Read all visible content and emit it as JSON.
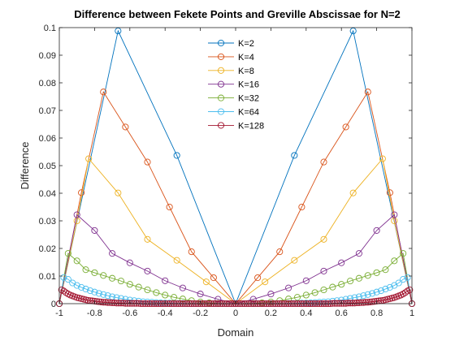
{
  "chart_data": {
    "type": "line",
    "title": "Difference between Fekete Points and Greville Abscissae for N=2",
    "xlabel": "Domain",
    "ylabel": "Difference",
    "xlim": [
      -1,
      1
    ],
    "ylim": [
      0,
      0.1
    ],
    "xticks": [
      -1,
      -0.8,
      -0.6,
      -0.4,
      -0.2,
      0,
      0.2,
      0.4,
      0.6,
      0.8,
      1
    ],
    "xtick_labels": [
      "-1",
      "-0.8",
      "-0.6",
      "-0.4",
      "-0.2",
      "0",
      "0.2",
      "0.4",
      "0.6",
      "0.8",
      "1"
    ],
    "yticks": [
      0,
      0.01,
      0.02,
      0.03,
      0.04,
      0.05,
      0.06,
      0.07,
      0.08,
      0.09,
      0.1
    ],
    "ytick_labels": [
      "0",
      "0.01",
      "0.02",
      "0.03",
      "0.04",
      "0.05",
      "0.06",
      "0.07",
      "0.08",
      "0.09",
      "0.1"
    ],
    "grid": false,
    "legend_position": "top-center",
    "series": [
      {
        "name": "K=2",
        "color": "#0072BD",
        "x": [
          -1,
          -0.6667,
          -0.3333,
          0,
          0.3333,
          0.6667,
          1
        ],
        "y": [
          0,
          0.0988,
          0.0537,
          0,
          0.0537,
          0.0988,
          0
        ]
      },
      {
        "name": "K=4",
        "color": "#D95319",
        "x": [
          -1,
          -0.875,
          -0.75,
          -0.625,
          -0.5,
          -0.375,
          -0.25,
          -0.125,
          0,
          0.125,
          0.25,
          0.375,
          0.5,
          0.625,
          0.75,
          0.875,
          1
        ],
        "y": [
          0,
          0.0402,
          0.0767,
          0.064,
          0.0513,
          0.035,
          0.0188,
          0.0094,
          0,
          0.0094,
          0.0188,
          0.035,
          0.0513,
          0.064,
          0.0767,
          0.0402,
          0
        ]
      },
      {
        "name": "K=8",
        "color": "#EDB120",
        "x": [
          -1,
          -0.9,
          -0.8333,
          -0.6667,
          -0.5,
          -0.3333,
          -0.1667,
          0,
          0.1667,
          0.3333,
          0.5,
          0.6667,
          0.8333,
          0.9,
          1
        ],
        "y": [
          0,
          0.03,
          0.0525,
          0.0401,
          0.0233,
          0.0157,
          0.0079,
          0,
          0.0079,
          0.0157,
          0.0233,
          0.0401,
          0.0525,
          0.03,
          0
        ]
      },
      {
        "name": "K=16",
        "color": "#7E2F8E",
        "x": [
          -1,
          -0.9,
          -0.8,
          -0.7,
          -0.6,
          -0.5,
          -0.4,
          -0.3,
          -0.2,
          -0.1,
          0,
          0.1,
          0.2,
          0.3,
          0.4,
          0.5,
          0.6,
          0.7,
          0.8,
          0.9,
          1
        ],
        "y": [
          0,
          0.0322,
          0.0265,
          0.0182,
          0.0148,
          0.0118,
          0.0083,
          0.0057,
          0.0035,
          0.0016,
          0,
          0.0016,
          0.0035,
          0.0057,
          0.0083,
          0.0118,
          0.0148,
          0.0182,
          0.0265,
          0.0322,
          0
        ]
      },
      {
        "name": "K=32",
        "color": "#77AC30",
        "x": [
          -1,
          -0.95,
          -0.9,
          -0.85,
          -0.8,
          -0.75,
          -0.7,
          -0.65,
          -0.6,
          -0.55,
          -0.5,
          -0.45,
          -0.4,
          -0.35,
          -0.3,
          -0.25,
          -0.2,
          -0.15,
          -0.1,
          -0.05,
          0,
          0.05,
          0.1,
          0.15,
          0.2,
          0.25,
          0.3,
          0.35,
          0.4,
          0.45,
          0.5,
          0.55,
          0.6,
          0.65,
          0.7,
          0.75,
          0.8,
          0.85,
          0.9,
          0.95,
          1
        ],
        "y": [
          0,
          0.0182,
          0.0155,
          0.0123,
          0.0112,
          0.0102,
          0.0092,
          0.0082,
          0.007,
          0.006,
          0.005,
          0.004,
          0.0031,
          0.0023,
          0.0017,
          0.0011,
          0.0006,
          0.0003,
          0.0001,
          0.0,
          0,
          0.0,
          0.0001,
          0.0003,
          0.0006,
          0.0011,
          0.0017,
          0.0023,
          0.0031,
          0.004,
          0.005,
          0.006,
          0.007,
          0.0082,
          0.0092,
          0.0102,
          0.0112,
          0.0123,
          0.0155,
          0.0182,
          0
        ]
      },
      {
        "name": "K=64",
        "color": "#4DBEEE",
        "x": [
          -1,
          -0.975,
          -0.95,
          -0.925,
          -0.9,
          -0.875,
          -0.85,
          -0.825,
          -0.8,
          -0.775,
          -0.75,
          -0.725,
          -0.7,
          -0.675,
          -0.65,
          -0.625,
          -0.6,
          -0.575,
          -0.55,
          -0.525,
          -0.5,
          -0.475,
          -0.45,
          -0.425,
          -0.4,
          -0.375,
          -0.35,
          -0.325,
          -0.3,
          -0.275,
          -0.25,
          -0.225,
          -0.2,
          -0.175,
          -0.15,
          -0.125,
          -0.1,
          -0.075,
          -0.05,
          -0.025,
          0,
          0.025,
          0.05,
          0.075,
          0.1,
          0.125,
          0.15,
          0.175,
          0.2,
          0.225,
          0.25,
          0.275,
          0.3,
          0.325,
          0.35,
          0.375,
          0.4,
          0.425,
          0.45,
          0.475,
          0.5,
          0.525,
          0.55,
          0.575,
          0.6,
          0.625,
          0.65,
          0.675,
          0.7,
          0.725,
          0.75,
          0.775,
          0.8,
          0.825,
          0.85,
          0.875,
          0.9,
          0.925,
          0.95,
          0.975,
          1
        ],
        "y": [
          0,
          0.0095,
          0.0088,
          0.0075,
          0.0066,
          0.0059,
          0.0053,
          0.0047,
          0.0042,
          0.0037,
          0.0033,
          0.0029,
          0.0025,
          0.0022,
          0.0019,
          0.0016,
          0.0013,
          0.0011,
          0.0009,
          0.0007,
          0.0006,
          0.0005,
          0.0004,
          0.0003,
          0.0002,
          0.0002,
          0.0001,
          0.0001,
          0.0001,
          0.0,
          0.0,
          0.0,
          0.0,
          0.0,
          0.0,
          0.0,
          0.0,
          0.0,
          0.0,
          0.0,
          0,
          0.0,
          0.0,
          0.0,
          0.0,
          0.0,
          0.0,
          0.0,
          0.0,
          0.0,
          0.0,
          0.0,
          0.0001,
          0.0001,
          0.0001,
          0.0002,
          0.0002,
          0.0003,
          0.0004,
          0.0005,
          0.0006,
          0.0007,
          0.0009,
          0.0011,
          0.0013,
          0.0016,
          0.0019,
          0.0022,
          0.0025,
          0.0029,
          0.0033,
          0.0037,
          0.0042,
          0.0047,
          0.0053,
          0.0059,
          0.0066,
          0.0075,
          0.0088,
          0.0095,
          0
        ]
      },
      {
        "name": "K=128",
        "color": "#A2142F",
        "x": [
          -1,
          -0.9875,
          -0.975,
          -0.9625,
          -0.95,
          -0.9375,
          -0.925,
          -0.9125,
          -0.9,
          -0.8875,
          -0.875,
          -0.8625,
          -0.85,
          -0.8375,
          -0.825,
          -0.8125,
          -0.8,
          -0.7875,
          -0.775,
          -0.7625,
          -0.75,
          -0.7375,
          -0.725,
          -0.7125,
          -0.7,
          -0.6875,
          -0.675,
          -0.6625,
          -0.65,
          -0.6375,
          -0.625,
          -0.6125,
          -0.6,
          -0.5875,
          -0.575,
          -0.5625,
          -0.55,
          -0.5375,
          -0.525,
          -0.5125,
          -0.5,
          -0.4875,
          -0.475,
          -0.4625,
          -0.45,
          -0.4375,
          -0.425,
          -0.4125,
          -0.4,
          -0.3875,
          -0.375,
          -0.3625,
          -0.35,
          -0.3375,
          -0.325,
          -0.3125,
          -0.3,
          -0.2875,
          -0.275,
          -0.2625,
          -0.25,
          -0.2375,
          -0.225,
          -0.2125,
          -0.2,
          -0.1875,
          -0.175,
          -0.1625,
          -0.15,
          -0.1375,
          -0.125,
          -0.1125,
          -0.1,
          -0.0875,
          -0.075,
          -0.0625,
          -0.05,
          -0.0375,
          -0.025,
          -0.0125,
          0,
          0.0125,
          0.025,
          0.0375,
          0.05,
          0.0625,
          0.075,
          0.0875,
          0.1,
          0.1125,
          0.125,
          0.1375,
          0.15,
          0.1625,
          0.175,
          0.1875,
          0.2,
          0.2125,
          0.225,
          0.2375,
          0.25,
          0.2625,
          0.275,
          0.2875,
          0.3,
          0.3125,
          0.325,
          0.3375,
          0.35,
          0.3625,
          0.375,
          0.3875,
          0.4,
          0.4125,
          0.425,
          0.4375,
          0.45,
          0.4625,
          0.475,
          0.4875,
          0.5,
          0.5125,
          0.525,
          0.5375,
          0.55,
          0.5625,
          0.575,
          0.5875,
          0.6,
          0.6125,
          0.625,
          0.6375,
          0.65,
          0.6625,
          0.675,
          0.6875,
          0.7,
          0.7125,
          0.725,
          0.7375,
          0.75,
          0.7625,
          0.775,
          0.7875,
          0.8,
          0.8125,
          0.825,
          0.8375,
          0.85,
          0.8625,
          0.875,
          0.8875,
          0.9,
          0.9125,
          0.925,
          0.9375,
          0.95,
          0.9625,
          0.975,
          0.9875,
          1
        ],
        "y": [
          0,
          0.005,
          0.0046,
          0.004,
          0.0035,
          0.0031,
          0.0028,
          0.0025,
          0.0022,
          0.002,
          0.0018,
          0.0016,
          0.0014,
          0.0012,
          0.0011,
          0.001,
          0.0009,
          0.0008,
          0.0007,
          0.0006,
          0.0005,
          0.0005,
          0.0004,
          0.0004,
          0.0003,
          0.0003,
          0.0002,
          0.0002,
          0.0002,
          0.0002,
          0.0001,
          0.0001,
          0.0001,
          0.0001,
          0.0001,
          0.0001,
          0.0001,
          0.0,
          0.0,
          0.0,
          0.0,
          0.0,
          0.0,
          0.0,
          0.0,
          0.0,
          0.0,
          0.0,
          0.0,
          0.0,
          0.0,
          0.0,
          0.0,
          0.0,
          0.0,
          0.0,
          0.0,
          0.0,
          0.0,
          0.0,
          0.0,
          0.0,
          0.0,
          0.0,
          0.0,
          0.0,
          0.0,
          0.0,
          0.0,
          0.0,
          0.0,
          0.0,
          0.0,
          0.0,
          0.0,
          0.0,
          0.0,
          0.0,
          0.0,
          0.0,
          0,
          0.0,
          0.0,
          0.0,
          0.0,
          0.0,
          0.0,
          0.0,
          0.0,
          0.0,
          0.0,
          0.0,
          0.0,
          0.0,
          0.0,
          0.0,
          0.0,
          0.0,
          0.0,
          0.0,
          0.0,
          0.0,
          0.0,
          0.0,
          0.0,
          0.0,
          0.0,
          0.0,
          0.0,
          0.0,
          0.0,
          0.0,
          0.0,
          0.0,
          0.0,
          0.0,
          0.0,
          0.0,
          0.0,
          0.0,
          0.0,
          0.0,
          0.0,
          0.0,
          0.0001,
          0.0001,
          0.0001,
          0.0001,
          0.0001,
          0.0001,
          0.0001,
          0.0002,
          0.0002,
          0.0002,
          0.0002,
          0.0003,
          0.0003,
          0.0004,
          0.0004,
          0.0005,
          0.0005,
          0.0006,
          0.0007,
          0.0008,
          0.0009,
          0.001,
          0.0011,
          0.0012,
          0.0014,
          0.0016,
          0.0018,
          0.002,
          0.0022,
          0.0025,
          0.0028,
          0.0031,
          0.0035,
          0.004,
          0.0046,
          0.005,
          0
        ]
      }
    ]
  }
}
